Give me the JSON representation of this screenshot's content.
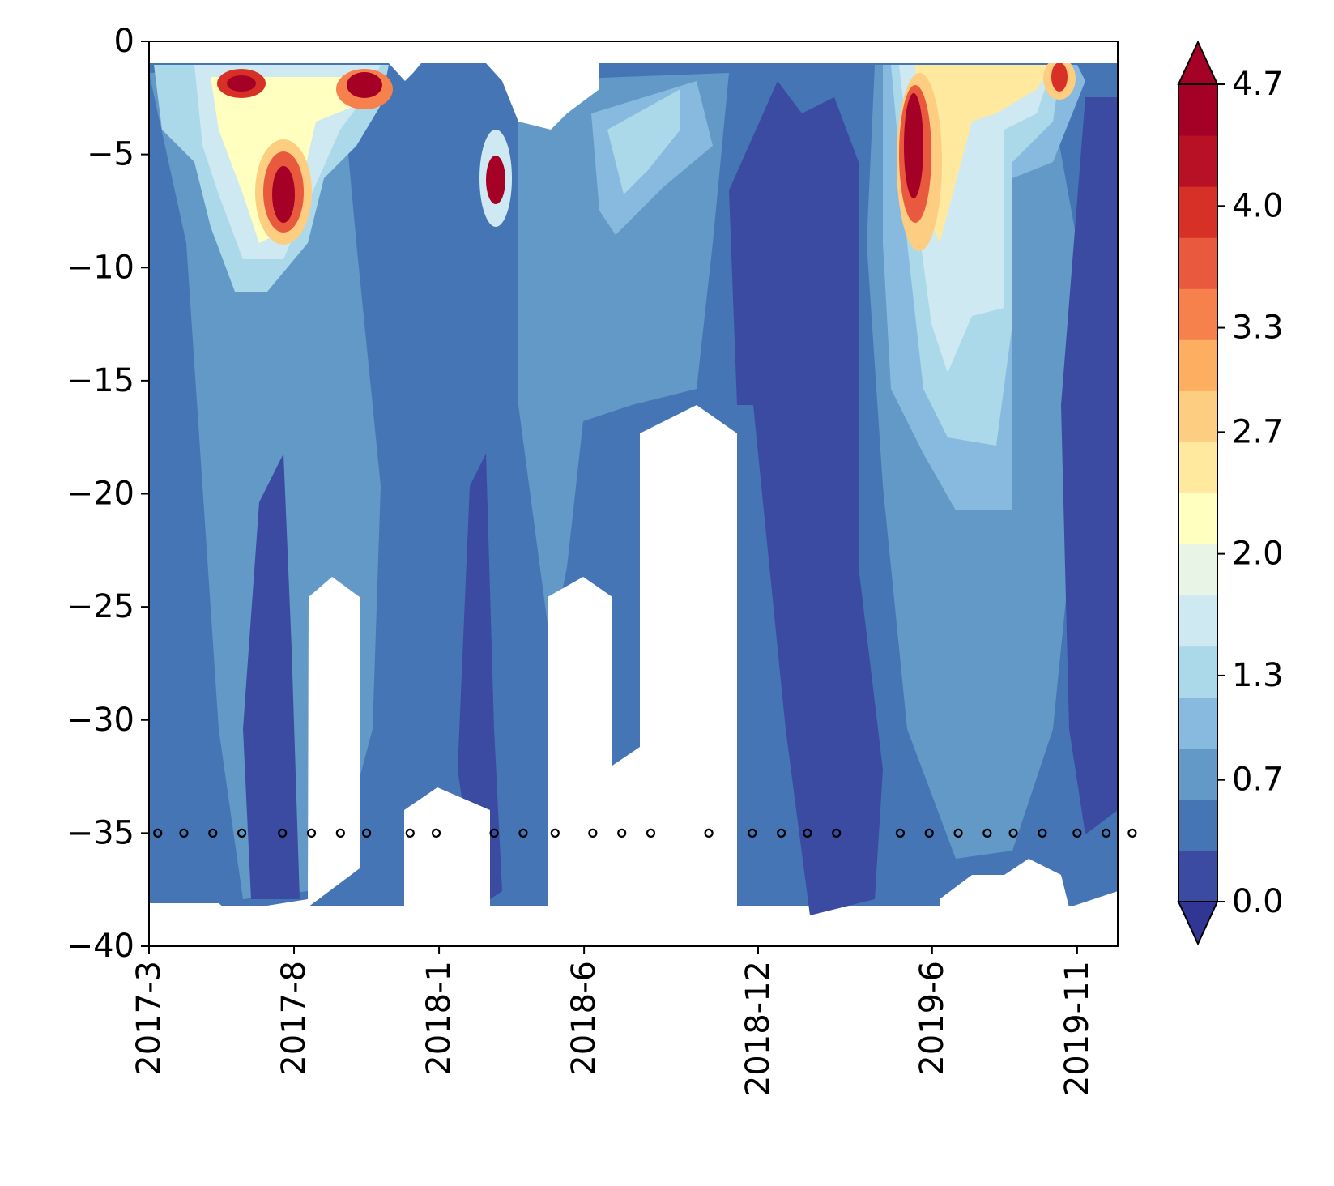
{
  "chart_data": {
    "type": "heatmap",
    "style": "filled-contour",
    "title": "",
    "xlabel": "",
    "ylabel": "",
    "x_tick_labels": [
      "2017-3",
      "2017-8",
      "2018-1",
      "2018-6",
      "2018-12",
      "2019-6",
      "2019-11"
    ],
    "x_tick_months": [
      0,
      5,
      10,
      15,
      21,
      27,
      32
    ],
    "x_range_months": [
      0,
      33.4
    ],
    "y_ticks": [
      0,
      -5,
      -10,
      -15,
      -20,
      -25,
      -30,
      -35,
      -40
    ],
    "y_tick_labels": [
      "0",
      "−5",
      "−10",
      "−15",
      "−20",
      "−25",
      "−30",
      "−35",
      "−40"
    ],
    "ylim": [
      -40,
      0
    ],
    "colorbar": {
      "tick_labels": [
        "0.0",
        "0.7",
        "1.3",
        "2.0",
        "2.7",
        "3.3",
        "4.0",
        "4.7"
      ],
      "tick_values": [
        0.0,
        0.7,
        1.3,
        2.0,
        2.7,
        3.3,
        4.0,
        4.7
      ],
      "range": [
        0.0,
        4.7
      ],
      "extend": "both",
      "colormap": "RdYlBu_r",
      "levels": 16,
      "colors": [
        "#3a4ba1",
        "#4575b4",
        "#6399c7",
        "#87bade",
        "#abd9e9",
        "#cfe9f2",
        "#e8f4e6",
        "#ffffbf",
        "#fee99e",
        "#fdcd81",
        "#fdae61",
        "#f7814d",
        "#e9593d",
        "#d73027",
        "#b81025",
        "#a50026"
      ]
    },
    "sample_depth": -35,
    "sample_months": [
      0.3,
      1.2,
      2.2,
      3.2,
      4.6,
      5.6,
      6.6,
      7.5,
      9.0,
      9.9,
      11.9,
      12.9,
      14.0,
      15.3,
      16.3,
      17.3,
      19.3,
      20.8,
      21.8,
      22.7,
      23.7,
      25.9,
      26.9,
      27.9,
      28.9,
      29.8,
      30.8,
      32.0,
      33.0,
      33.9
    ]
  }
}
